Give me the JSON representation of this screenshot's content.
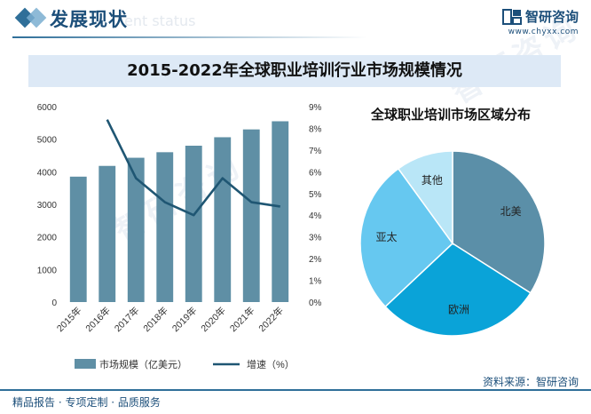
{
  "header": {
    "section_title": "发展现状",
    "section_subtitle": "ent status",
    "brand_name": "智研咨询",
    "brand_url": "www.chyxx.com"
  },
  "watermark": {
    "text": "智研咨询"
  },
  "footer": {
    "left_text": "精品报告 · 专项定制 · 品质服务",
    "source_text": "资料来源：智研咨询"
  },
  "chart_data": [
    {
      "type": "bar+line",
      "title": "2015-2022年全球职业培训行业市场规模情况",
      "categories": [
        "2015年",
        "2016年",
        "2017年",
        "2018年",
        "2019年",
        "2020年",
        "2021年",
        "2022年"
      ],
      "series": [
        {
          "name": "市场规模（亿美元）",
          "type": "bar",
          "axis": "left",
          "values": [
            3850,
            4180,
            4430,
            4600,
            4800,
            5060,
            5300,
            5550
          ]
        },
        {
          "name": "增速（%）",
          "type": "line",
          "axis": "right",
          "values": [
            null,
            8.4,
            5.7,
            4.6,
            4.0,
            5.7,
            4.6,
            4.4
          ]
        }
      ],
      "yleft": {
        "ylim": [
          0,
          6000
        ],
        "ticks": [
          "0",
          "1000",
          "2000",
          "3000",
          "4000",
          "5000",
          "6000"
        ]
      },
      "yright": {
        "ylim": [
          0,
          9
        ],
        "ticks": [
          "0%",
          "1%",
          "2%",
          "3%",
          "4%",
          "5%",
          "6%",
          "7%",
          "8%",
          "9%"
        ]
      },
      "legend_placement": "bottom",
      "colors": {
        "bar": "#5f8fa5",
        "line": "#1f5673"
      }
    },
    {
      "type": "pie",
      "title": "全球职业培训市场区域分布",
      "slices": [
        {
          "label": "北美",
          "value": 34,
          "color": "#5b8fa8"
        },
        {
          "label": "欧洲",
          "value": 29,
          "color": "#0aa3d8"
        },
        {
          "label": "亚太",
          "value": 27,
          "color": "#66c8f0"
        },
        {
          "label": "其他",
          "value": 10,
          "color": "#b9e6f7"
        }
      ]
    }
  ]
}
